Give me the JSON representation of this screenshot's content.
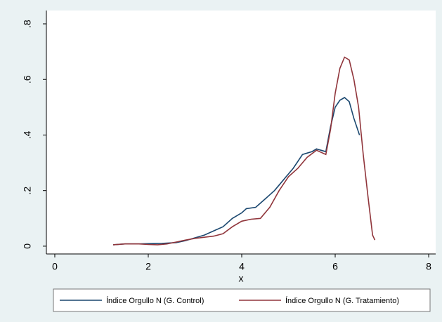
{
  "chart_data": {
    "type": "line",
    "x_label": "x",
    "xlim": [
      -0.18,
      8.15
    ],
    "ylim": [
      -0.028,
      0.848
    ],
    "xticks": [
      0,
      2,
      4,
      6,
      8
    ],
    "yticks": [
      0,
      {
        "value": 0.2,
        "label": ".2"
      },
      {
        "value": 0.4,
        "label": ".4"
      },
      {
        "value": 0.6,
        "label": ".6"
      },
      {
        "value": 0.8,
        "label": ".8"
      }
    ],
    "grid": false,
    "legend": "bottom",
    "series": [
      {
        "name": "Índice Orgullo N (G. Control)",
        "color": "#1a476f",
        "x": [
          1.25,
          1.5,
          1.8,
          2.0,
          2.3,
          2.6,
          2.8,
          3.0,
          3.2,
          3.4,
          3.6,
          3.8,
          4.0,
          4.1,
          4.3,
          4.5,
          4.7,
          4.9,
          5.1,
          5.3,
          5.5,
          5.6,
          5.8,
          5.9,
          6.0,
          6.1,
          6.2,
          6.3,
          6.4,
          6.52
        ],
        "values": [
          0.005,
          0.008,
          0.008,
          0.009,
          0.01,
          0.013,
          0.02,
          0.03,
          0.04,
          0.055,
          0.07,
          0.1,
          0.12,
          0.135,
          0.14,
          0.17,
          0.2,
          0.24,
          0.28,
          0.33,
          0.34,
          0.35,
          0.34,
          0.43,
          0.5,
          0.525,
          0.535,
          0.52,
          0.46,
          0.4
        ]
      },
      {
        "name": "Índice Orgullo N (G. Tratamiento)",
        "color": "#90353b",
        "x": [
          1.25,
          1.5,
          1.8,
          2.0,
          2.2,
          2.4,
          2.6,
          2.8,
          3.0,
          3.2,
          3.4,
          3.6,
          3.8,
          4.0,
          4.2,
          4.4,
          4.6,
          4.8,
          5.0,
          5.2,
          5.4,
          5.6,
          5.8,
          5.9,
          6.0,
          6.1,
          6.2,
          6.3,
          6.4,
          6.5,
          6.6,
          6.7,
          6.8,
          6.85
        ],
        "values": [
          0.005,
          0.008,
          0.008,
          0.006,
          0.005,
          0.008,
          0.015,
          0.022,
          0.028,
          0.032,
          0.036,
          0.045,
          0.07,
          0.09,
          0.097,
          0.1,
          0.14,
          0.2,
          0.25,
          0.28,
          0.32,
          0.345,
          0.33,
          0.42,
          0.55,
          0.64,
          0.68,
          0.67,
          0.6,
          0.5,
          0.33,
          0.18,
          0.04,
          0.022
        ]
      }
    ]
  }
}
